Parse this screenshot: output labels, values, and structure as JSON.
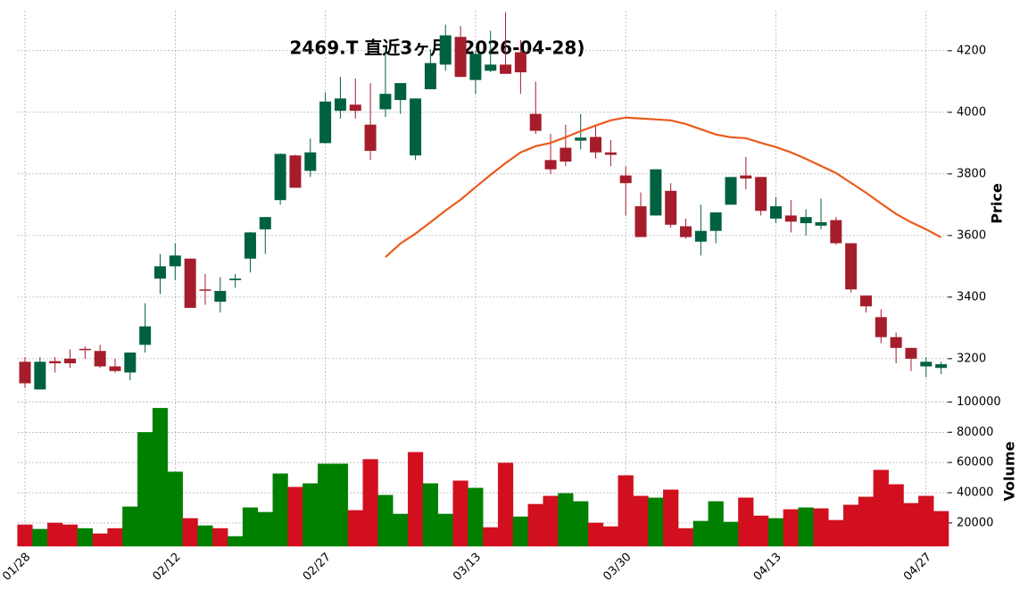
{
  "chart_data": {
    "type": "candlestick",
    "title": "2469.T  直近3ヶ月 (2026-04-28)",
    "categories": [
      "01/28",
      null,
      null,
      null,
      null,
      null,
      null,
      null,
      null,
      null,
      "02/12",
      null,
      null,
      null,
      null,
      null,
      null,
      null,
      null,
      null,
      "02/27",
      null,
      null,
      null,
      null,
      null,
      null,
      null,
      null,
      null,
      "03/13",
      null,
      null,
      null,
      null,
      null,
      null,
      null,
      null,
      null,
      "03/30",
      null,
      null,
      null,
      null,
      null,
      null,
      null,
      null,
      null,
      "04/13",
      null,
      null,
      null,
      null,
      null,
      null,
      null,
      null,
      null,
      "04/27",
      null
    ],
    "open": [
      3190,
      3100,
      3192,
      3200,
      3232,
      3225,
      3175,
      3155,
      3245,
      3460,
      3500,
      3525,
      3425,
      3385,
      3455,
      3525,
      3620,
      3715,
      3860,
      3810,
      3900,
      4005,
      4025,
      3960,
      4010,
      4040,
      3860,
      4075,
      4155,
      4245,
      4105,
      4135,
      4155,
      4195,
      3995,
      3845,
      3885,
      3908,
      3920,
      3870,
      3795,
      3695,
      3665,
      3745,
      3630,
      3580,
      3615,
      3700,
      3795,
      3790,
      3655,
      3665,
      3640,
      3632,
      3650,
      3575,
      3405,
      3335,
      3270,
      3235,
      3175,
      3170
    ],
    "high": [
      3205,
      3205,
      3205,
      3230,
      3240,
      3245,
      3200,
      3220,
      3380,
      3540,
      3575,
      3525,
      3475,
      3465,
      3475,
      3612,
      3660,
      3867,
      3862,
      3915,
      4065,
      4115,
      4110,
      4095,
      4205,
      4095,
      4045,
      4205,
      4285,
      4280,
      4200,
      4265,
      4325,
      4235,
      4100,
      3930,
      3960,
      3995,
      3960,
      3910,
      3825,
      3740,
      3815,
      3770,
      3655,
      3700,
      3675,
      3790,
      3855,
      3790,
      3725,
      3715,
      3685,
      3720,
      3660,
      3575,
      3405,
      3360,
      3285,
      3235,
      3205,
      3190
    ],
    "low": [
      3105,
      3100,
      3155,
      3170,
      3200,
      3170,
      3155,
      3130,
      3220,
      3410,
      3455,
      3365,
      3375,
      3350,
      3430,
      3480,
      3540,
      3700,
      3755,
      3790,
      3900,
      3980,
      3980,
      3845,
      3985,
      3995,
      3845,
      4075,
      4135,
      4115,
      4060,
      4130,
      4125,
      4060,
      3930,
      3800,
      3825,
      3880,
      3850,
      3825,
      3665,
      3595,
      3665,
      3625,
      3590,
      3535,
      3575,
      3700,
      3750,
      3665,
      3640,
      3610,
      3600,
      3620,
      3570,
      3415,
      3350,
      3250,
      3185,
      3160,
      3140,
      3150
    ],
    "close": [
      3120,
      3190,
      3185,
      3185,
      3228,
      3175,
      3160,
      3220,
      3305,
      3500,
      3535,
      3365,
      3422,
      3420,
      3460,
      3610,
      3660,
      3865,
      3755,
      3870,
      4035,
      4045,
      4005,
      3875,
      4060,
      4095,
      4045,
      4160,
      4250,
      4115,
      4190,
      4155,
      4125,
      4130,
      3940,
      3815,
      3840,
      3918,
      3870,
      3862,
      3770,
      3595,
      3815,
      3635,
      3595,
      3615,
      3675,
      3790,
      3785,
      3680,
      3695,
      3645,
      3660,
      3643,
      3575,
      3425,
      3370,
      3270,
      3235,
      3200,
      3190,
      3182
    ],
    "up_color": "#00613f",
    "down_color": "#a51d2b",
    "ylim": [
      3075,
      4330
    ],
    "yticks": [
      3200,
      3400,
      3600,
      3800,
      4000,
      4200
    ],
    "ylabel": "Price",
    "grid": true,
    "ma": {
      "color": "#ec5a1c",
      "values": [
        null,
        null,
        null,
        null,
        null,
        null,
        null,
        null,
        null,
        null,
        null,
        null,
        null,
        null,
        null,
        null,
        null,
        null,
        null,
        null,
        null,
        null,
        null,
        null,
        3530,
        3574,
        3606,
        3643,
        3681,
        3716,
        3757,
        3797,
        3835,
        3870,
        3890,
        3901,
        3919,
        3939,
        3957,
        3974,
        3983,
        3980,
        3977,
        3974,
        3962,
        3945,
        3928,
        3919,
        3916,
        3901,
        3887,
        3870,
        3849,
        3826,
        3803,
        3771,
        3739,
        3704,
        3670,
        3643,
        3620,
        3594
      ]
    },
    "volume": {
      "ylabel": "Volume",
      "ylim": [
        4600,
        102000
      ],
      "yticks": [
        20000,
        40000,
        60000,
        80000,
        100000
      ],
      "values": [
        18800,
        15900,
        20000,
        18800,
        16400,
        12900,
        16400,
        30700,
        79900,
        95900,
        53800,
        23000,
        18200,
        16400,
        11100,
        30100,
        27100,
        52600,
        43700,
        46100,
        59100,
        59100,
        28300,
        62100,
        38400,
        25900,
        66800,
        46100,
        25900,
        47900,
        43100,
        17000,
        59700,
        24100,
        32400,
        37800,
        39600,
        34200,
        20000,
        17600,
        51400,
        37800,
        36600,
        41900,
        16400,
        21200,
        34200,
        20600,
        36600,
        24700,
        23000,
        28900,
        30100,
        29500,
        21800,
        31900,
        37200,
        55000,
        45500,
        33000,
        37800,
        27700
      ],
      "colors": [
        "#d10f1f",
        "#008000",
        "#d10f1f",
        "#d10f1f",
        "#008000",
        "#d10f1f",
        "#d10f1f",
        "#008000",
        "#008000",
        "#008000",
        "#008000",
        "#d10f1f",
        "#008000",
        "#d10f1f",
        "#008000",
        "#008000",
        "#008000",
        "#008000",
        "#d10f1f",
        "#008000",
        "#008000",
        "#008000",
        "#d10f1f",
        "#d10f1f",
        "#008000",
        "#008000",
        "#d10f1f",
        "#008000",
        "#008000",
        "#d10f1f",
        "#008000",
        "#d10f1f",
        "#d10f1f",
        "#008000",
        "#d10f1f",
        "#d10f1f",
        "#008000",
        "#008000",
        "#d10f1f",
        "#d10f1f",
        "#d10f1f",
        "#d10f1f",
        "#008000",
        "#d10f1f",
        "#d10f1f",
        "#008000",
        "#008000",
        "#008000",
        "#d10f1f",
        "#d10f1f",
        "#008000",
        "#d10f1f",
        "#008000",
        "#d10f1f",
        "#d10f1f",
        "#d10f1f",
        "#d10f1f",
        "#d10f1f",
        "#d10f1f",
        "#d10f1f",
        "#d10f1f",
        "#d10f1f"
      ]
    }
  }
}
